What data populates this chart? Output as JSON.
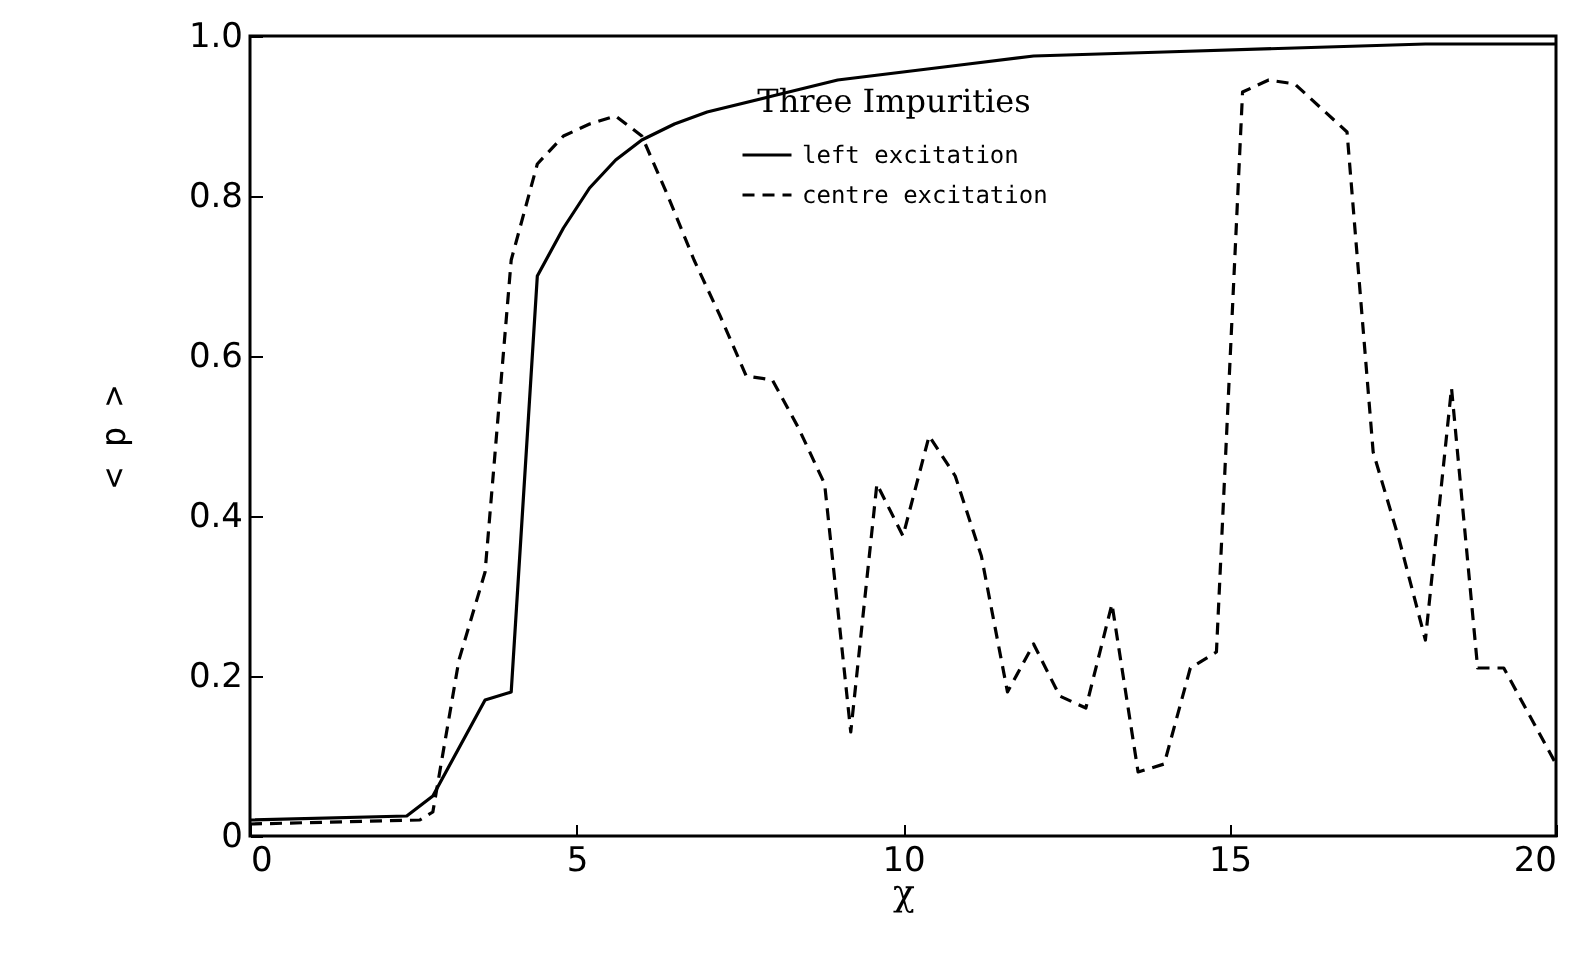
{
  "chart_data": {
    "type": "line",
    "xlabel": "χ",
    "ylabel": "< p >",
    "legend_title": "Three Impurities",
    "legend": "top",
    "xlim": [
      0,
      20
    ],
    "ylim": [
      0,
      1
    ],
    "xticks": [
      0,
      5,
      10,
      15,
      20
    ],
    "yticks": [
      0,
      0.2,
      0.4,
      0.6,
      0.8,
      {
        "value": 1,
        "label": "1.0"
      }
    ],
    "grid": false,
    "marker": "none",
    "series": [
      {
        "name": "left excitation",
        "color": "#000000",
        "line_style": "solid",
        "x": [
          0,
          2.4,
          2.8,
          3.2,
          3.6,
          4.0,
          4.4,
          4.8,
          5.2,
          5.6,
          6.0,
          6.5,
          7,
          8,
          9,
          10,
          11,
          12,
          14,
          16,
          18,
          20
        ],
        "values": [
          0.02,
          0.025,
          0.05,
          0.11,
          0.17,
          0.18,
          0.7,
          0.76,
          0.81,
          0.845,
          0.87,
          0.89,
          0.905,
          0.925,
          0.945,
          0.955,
          0.965,
          0.975,
          0.98,
          0.985,
          0.99,
          0.99
        ]
      },
      {
        "name": "centre excitation",
        "color": "#000000",
        "line_style": "dashed",
        "x": [
          0,
          2.6,
          2.8,
          3.2,
          3.6,
          4.0,
          4.4,
          4.8,
          5.2,
          5.6,
          6.0,
          6.4,
          6.8,
          7.2,
          7.6,
          8.0,
          8.4,
          8.8,
          9.2,
          9.6,
          10.0,
          10.4,
          10.8,
          11.2,
          11.6,
          12.0,
          12.4,
          12.8,
          13.2,
          13.6,
          14.0,
          14.4,
          14.8,
          15.2,
          15.6,
          16.0,
          16.8,
          17.2,
          17.6,
          18.0,
          18.4,
          18.8,
          19.2,
          19.6,
          20
        ],
        "values": [
          0.015,
          0.02,
          0.03,
          0.22,
          0.33,
          0.72,
          0.84,
          0.875,
          0.89,
          0.9,
          0.875,
          0.8,
          0.72,
          0.65,
          0.575,
          0.57,
          0.51,
          0.44,
          0.13,
          0.44,
          0.375,
          0.5,
          0.45,
          0.35,
          0.18,
          0.24,
          0.175,
          0.16,
          0.29,
          0.08,
          0.09,
          0.21,
          0.23,
          0.93,
          0.945,
          0.94,
          0.88,
          0.48,
          0.37,
          0.245,
          0.56,
          0.21,
          0.21,
          0.15,
          0.09
        ]
      }
    ]
  }
}
